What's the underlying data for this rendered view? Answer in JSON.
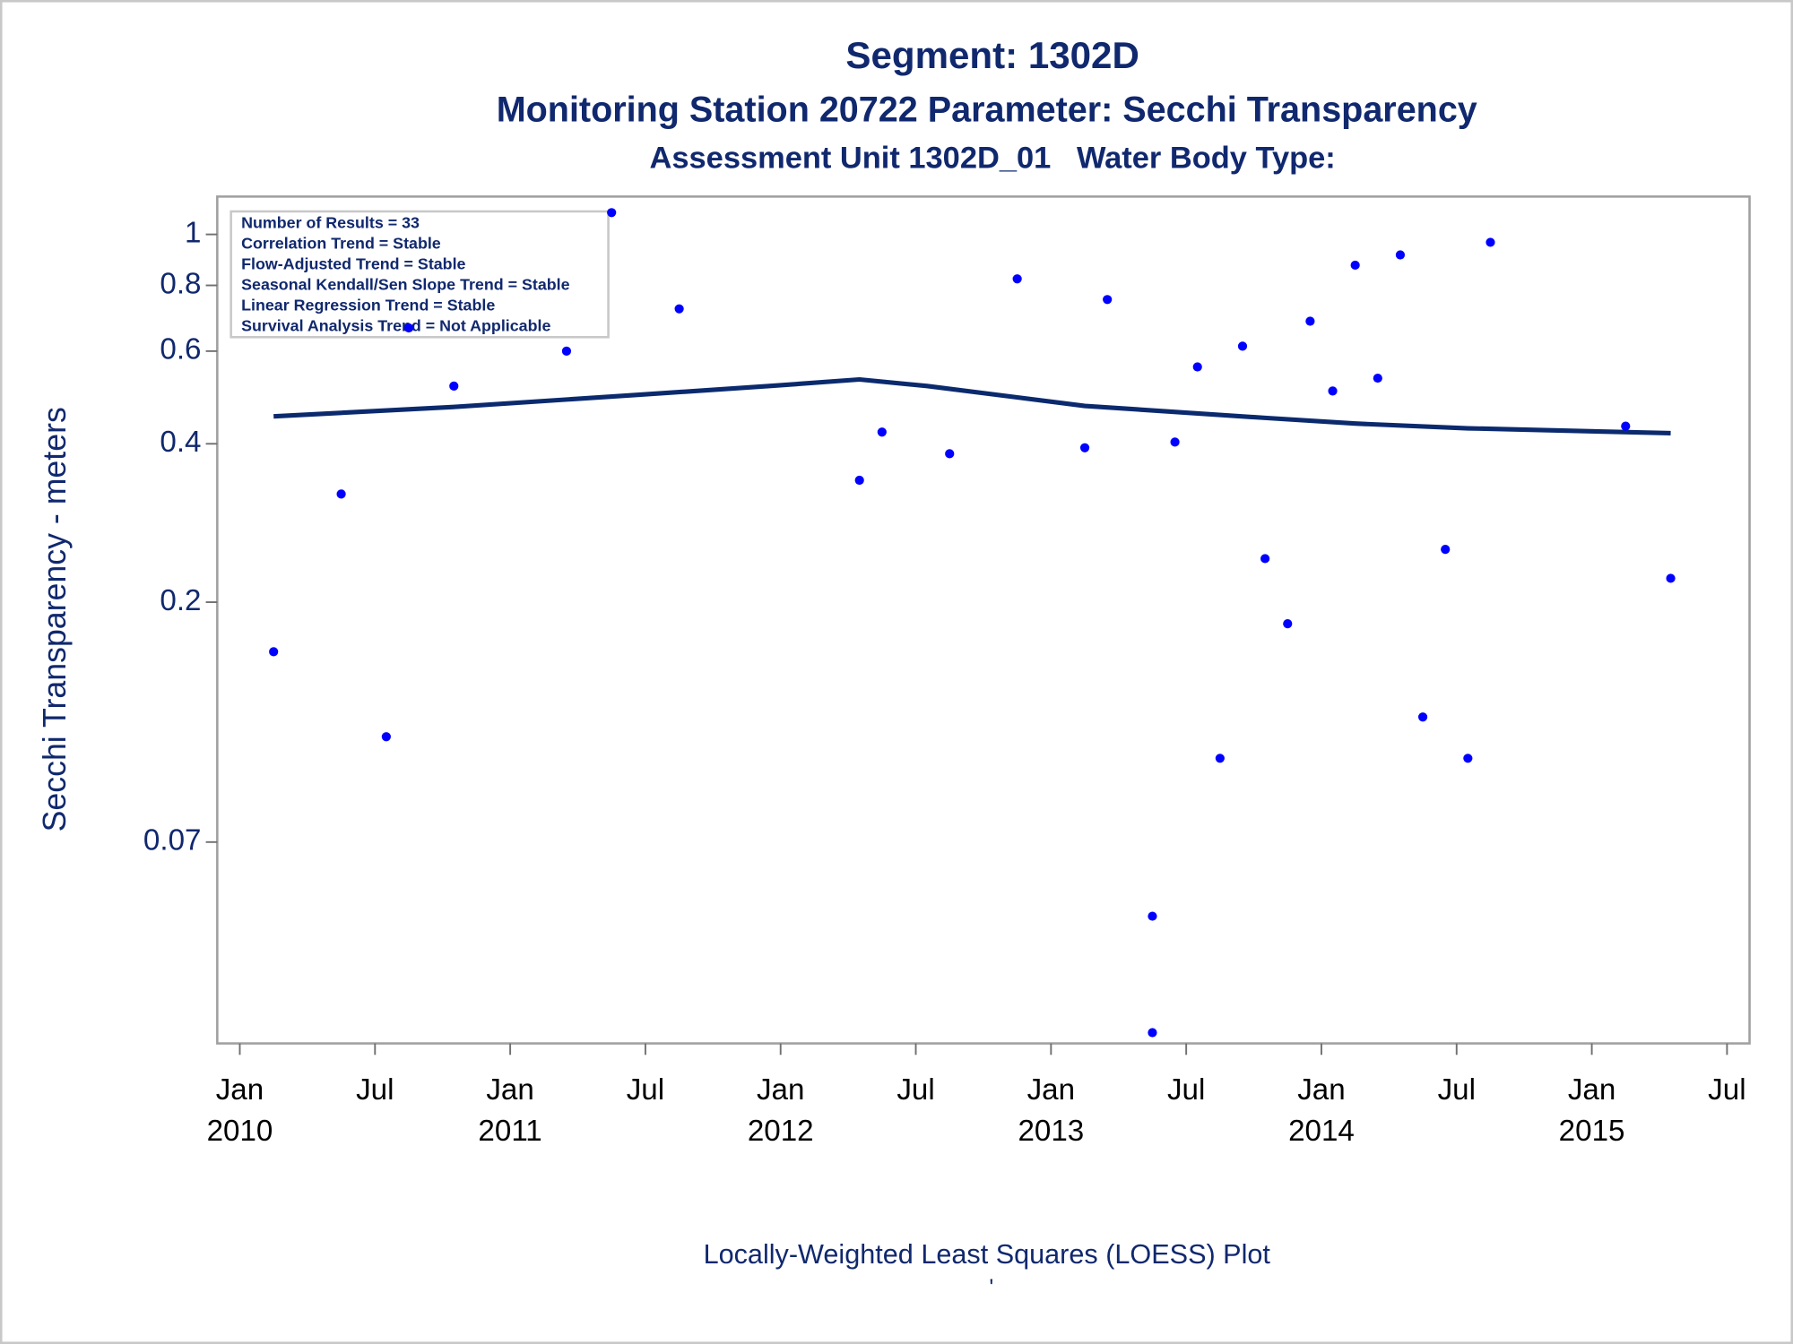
{
  "chart_data": {
    "type": "scatter",
    "title": "Segment: 1302D",
    "subtitle": "Monitoring Station 20722 Parameter: Secchi Transparency",
    "subtitle2": "Assessment Unit 1302D_01   Water Body Type:",
    "ylabel": "Secchi Transparency - meters",
    "footnote": "Locally-Weighted Least Squares (LOESS) Plot",
    "footnote2": "'",
    "annotations": [
      "Number of Results = 33",
      "Correlation Trend = Stable",
      "Flow-Adjusted Trend = Stable",
      "Seasonal Kendall/Sen Slope Trend = Stable",
      "Linear Regression Trend = Stable",
      "Survival Analysis Trend = Not Applicable"
    ],
    "log_y": true,
    "ylim": [
      0.029,
      1.18
    ],
    "yticks": [
      1,
      0.8,
      0.6,
      0.4,
      0.2,
      0.07
    ],
    "xlim": [
      "2009-12",
      "2015-08"
    ],
    "xticks": [
      {
        "value": "2010-01",
        "label": "Jan 2010"
      },
      {
        "value": "2010-07",
        "label": "Jul"
      },
      {
        "value": "2011-01",
        "label": "Jan 2011"
      },
      {
        "value": "2011-07",
        "label": "Jul"
      },
      {
        "value": "2012-01",
        "label": "Jan 2012"
      },
      {
        "value": "2012-07",
        "label": "Jul"
      },
      {
        "value": "2013-01",
        "label": "Jan 2013"
      },
      {
        "value": "2013-07",
        "label": "Jul"
      },
      {
        "value": "2014-01",
        "label": "Jan 2014"
      },
      {
        "value": "2014-07",
        "label": "Jul"
      },
      {
        "value": "2015-01",
        "label": "Jan 2015"
      },
      {
        "value": "2015-07",
        "label": "Jul"
      }
    ],
    "points": {
      "color": "#0000ff",
      "x": [
        "2010-02",
        "2010-05",
        "2010-07",
        "2010-08",
        "2010-10",
        "2011-03",
        "2011-05",
        "2011-08",
        "2012-04",
        "2012-05",
        "2012-08",
        "2012-11",
        "2013-02",
        "2013-03",
        "2013-05",
        "2013-05",
        "2013-06",
        "2013-07",
        "2013-08",
        "2013-09",
        "2013-10",
        "2013-11",
        "2013-12",
        "2014-01",
        "2014-02",
        "2014-03",
        "2014-04",
        "2014-05",
        "2014-06",
        "2014-07",
        "2014-08",
        "2015-02",
        "2015-04"
      ],
      "values": [
        0.161,
        0.321,
        0.111,
        0.664,
        0.515,
        0.6,
        1.1,
        0.722,
        0.341,
        0.421,
        0.383,
        0.823,
        0.393,
        0.752,
        0.0506,
        0.0304,
        0.403,
        0.56,
        0.101,
        0.613,
        0.242,
        0.182,
        0.684,
        0.504,
        0.874,
        0.533,
        0.914,
        0.121,
        0.252,
        0.101,
        0.966,
        0.432,
        0.222
      ]
    },
    "loess": {
      "color": "#0b2a6e",
      "x": [
        "2010-02",
        "2010-10",
        "2011-06",
        "2011-12",
        "2012-04",
        "2012-07",
        "2012-11",
        "2013-02",
        "2013-10",
        "2014-02",
        "2014-07",
        "2015-04"
      ],
      "values": [
        0.451,
        0.47,
        0.495,
        0.515,
        0.53,
        0.515,
        0.49,
        0.472,
        0.448,
        0.437,
        0.428,
        0.419
      ]
    }
  }
}
